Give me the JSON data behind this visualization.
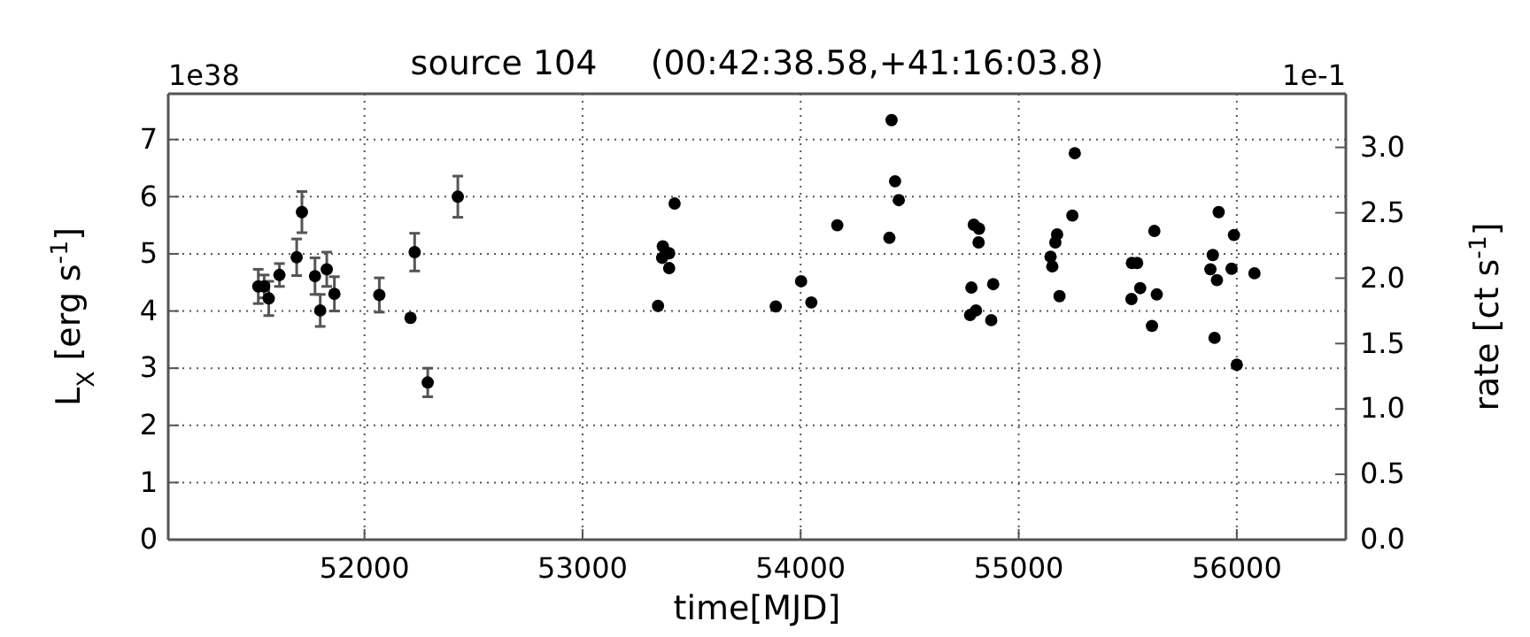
{
  "chart_data": {
    "type": "scatter",
    "title": "source 104     (00:42:38.58,+41:16:03.8)",
    "xlabel": "time[MJD]",
    "ylabel": "L$_{X}$ [erg s$^{-1}$]",
    "y2label": "rate [ct s$^{-1}$]",
    "annotations": [
      "1e38",
      "1e-1"
    ],
    "xlim": [
      51100,
      56500
    ],
    "xticks": [
      52000,
      53000,
      54000,
      55000,
      56000
    ],
    "ylim": [
      0,
      7.8
    ],
    "yticks": [
      0,
      1,
      2,
      3,
      4,
      5,
      6,
      7
    ],
    "y2lim": [
      0,
      3.41
    ],
    "y2ticks": [
      {
        "value": 0,
        "label": "0.0"
      },
      {
        "value": 0.5,
        "label": "0.5"
      },
      {
        "value": 1,
        "label": "1.0"
      },
      {
        "value": 1.5,
        "label": "1.5"
      },
      {
        "value": 2,
        "label": "2.0"
      },
      {
        "value": 2.5,
        "label": "2.5"
      },
      {
        "value": 3,
        "label": "3.0"
      }
    ],
    "grid": true,
    "marker": "circle",
    "series": [
      {
        "color": "#000000",
        "x": [
          51513,
          51540,
          51561,
          51610,
          51689,
          51713,
          51773,
          51797,
          51827,
          51862,
          52068,
          52211,
          52230,
          52290,
          52428,
          53346,
          53368,
          53365,
          53397,
          53397,
          53422,
          53886,
          54002,
          54049,
          54168,
          54407,
          54417,
          54433,
          54450,
          54794,
          54818,
          54816,
          54783,
          54883,
          54777,
          54804,
          54874,
          55257,
          55246,
          55176,
          55168,
          55146,
          55154,
          55187,
          55519,
          55543,
          55557,
          55517,
          55622,
          55633,
          55611,
          55890,
          55879,
          55909,
          55917,
          55898,
          55987,
          55976,
          56000,
          56081
        ],
        "values": [
          4.43,
          4.43,
          4.22,
          4.63,
          4.94,
          5.73,
          4.61,
          4.01,
          4.73,
          4.3,
          4.28,
          3.88,
          5.03,
          2.75,
          6.0,
          4.09,
          5.13,
          4.93,
          5.01,
          4.75,
          5.88,
          4.08,
          4.52,
          4.15,
          5.5,
          5.28,
          7.34,
          6.27,
          5.94,
          5.51,
          5.44,
          5.2,
          4.41,
          4.47,
          3.93,
          4.01,
          3.84,
          6.76,
          5.67,
          5.34,
          5.2,
          4.95,
          4.78,
          4.26,
          4.84,
          4.84,
          4.4,
          4.21,
          5.4,
          4.29,
          3.74,
          4.98,
          4.73,
          4.54,
          5.73,
          3.53,
          5.33,
          4.74,
          3.06,
          4.66
        ],
        "errors": [
          0.3,
          0.2,
          0.3,
          0.2,
          0.32,
          0.36,
          0.32,
          0.28,
          0.3,
          0.3,
          0.3,
          null,
          0.33,
          0.25,
          0.36,
          null,
          null,
          null,
          null,
          null,
          null,
          null,
          null,
          null,
          null,
          null,
          null,
          null,
          null,
          null,
          null,
          null,
          null,
          null,
          null,
          null,
          null,
          null,
          null,
          null,
          null,
          null,
          null,
          null,
          null,
          null,
          null,
          null,
          null,
          null,
          null,
          null,
          null,
          null,
          null,
          null,
          null,
          null,
          null,
          null
        ]
      }
    ]
  }
}
